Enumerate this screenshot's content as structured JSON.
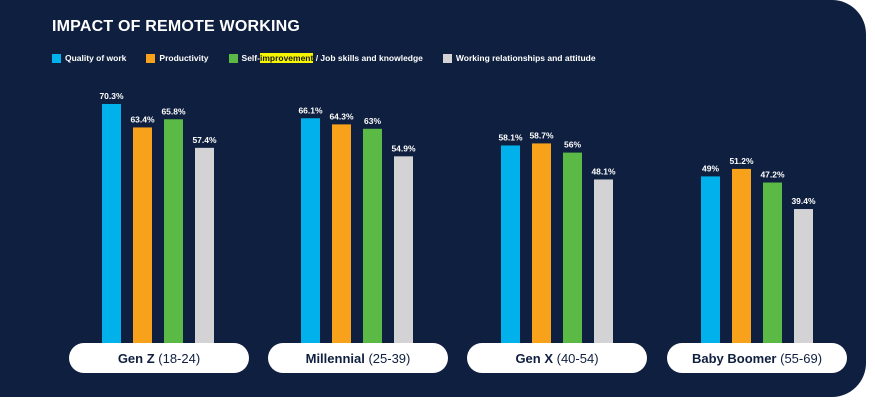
{
  "colors": {
    "background": "#0f1f3f",
    "quality": "#00b1ec",
    "productivity": "#f8a21c",
    "self": "#5bb946",
    "relationships": "#d3d3d6"
  },
  "chart_data": {
    "type": "bar",
    "title": "IMPACT OF REMOTE WORKING",
    "legend_position": "top-left",
    "grid": false,
    "ylim": [
      0,
      80
    ],
    "categories": [
      {
        "name": "Gen Z",
        "range": "(18-24)"
      },
      {
        "name": "Millennial",
        "range": "(25-39)"
      },
      {
        "name": "Gen X",
        "range": "(40-54)"
      },
      {
        "name": "Baby Boomer",
        "range": "(55-69)"
      }
    ],
    "series": [
      {
        "name": "Quality of work",
        "color": "#00b1ec",
        "values": [
          70.3,
          66.1,
          58.1,
          49
        ],
        "labels": [
          "70.3%",
          "66.1%",
          "58.1%",
          "49%"
        ]
      },
      {
        "name": "Productivity",
        "color": "#f8a21c",
        "values": [
          63.4,
          64.3,
          58.7,
          51.2
        ],
        "labels": [
          "63.4%",
          "64.3%",
          "58.7%",
          "51.2%"
        ]
      },
      {
        "name": "Self-improvement / Job skills and knowledge",
        "name_parts": [
          "Self-",
          "improvement",
          " / Job skills and knowledge"
        ],
        "color": "#5bb946",
        "values": [
          65.8,
          63,
          56,
          47.2
        ],
        "labels": [
          "65.8%",
          "63%",
          "56%",
          "47.2%"
        ]
      },
      {
        "name": "Working relationships and attitude",
        "color": "#d3d3d6",
        "values": [
          57.4,
          54.9,
          48.1,
          39.4
        ],
        "labels": [
          "57.4%",
          "54.9%",
          "48.1%",
          "39.4%"
        ]
      }
    ]
  }
}
